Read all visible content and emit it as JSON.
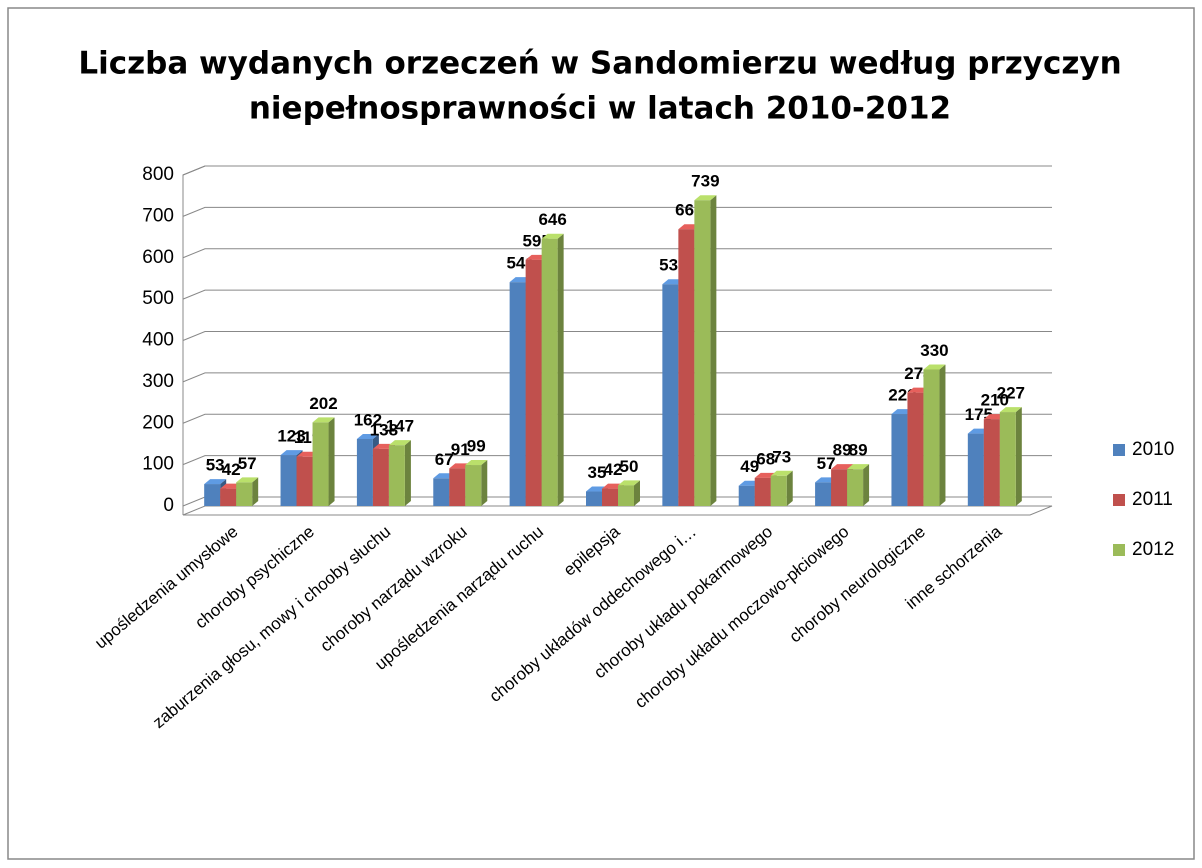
{
  "chart_data": {
    "type": "bar",
    "title": "Liczba wydanych orzeczeń w Sandomierzu według przyczyn",
    "subtitle": "niepełnosprawności w latach 2010-2012",
    "categories": [
      "upośledzenia umysłowe",
      "choroby psychiczne",
      "zaburzenia głosu, mowy i chooby słuchu",
      "choroby narządu wzroku",
      "upośledzenia narządu ruchu",
      "epilepsja",
      "choroby układów oddechowego i…",
      "choroby układu pokarmowego",
      "choroby układu moczowo-płciowego",
      "choroby neurologiczne",
      "inne schorzenia"
    ],
    "series": [
      {
        "name": "2010",
        "color": "#4f81bd",
        "values": [
          53,
          123,
          162,
          67,
          541,
          35,
          536,
          49,
          57,
          222,
          175
        ]
      },
      {
        "name": "2011",
        "color": "#c0504d",
        "values": [
          42,
          119,
          138,
          91,
          595,
          42,
          669,
          68,
          89,
          274,
          210
        ]
      },
      {
        "name": "2012",
        "color": "#9bbb59",
        "values": [
          57,
          202,
          147,
          99,
          646,
          50,
          739,
          73,
          89,
          330,
          227
        ]
      }
    ],
    "ylim": [
      0,
      800
    ],
    "yticks": [
      0,
      100,
      200,
      300,
      400,
      500,
      600,
      700,
      800
    ],
    "grid": true,
    "legend": "right"
  }
}
